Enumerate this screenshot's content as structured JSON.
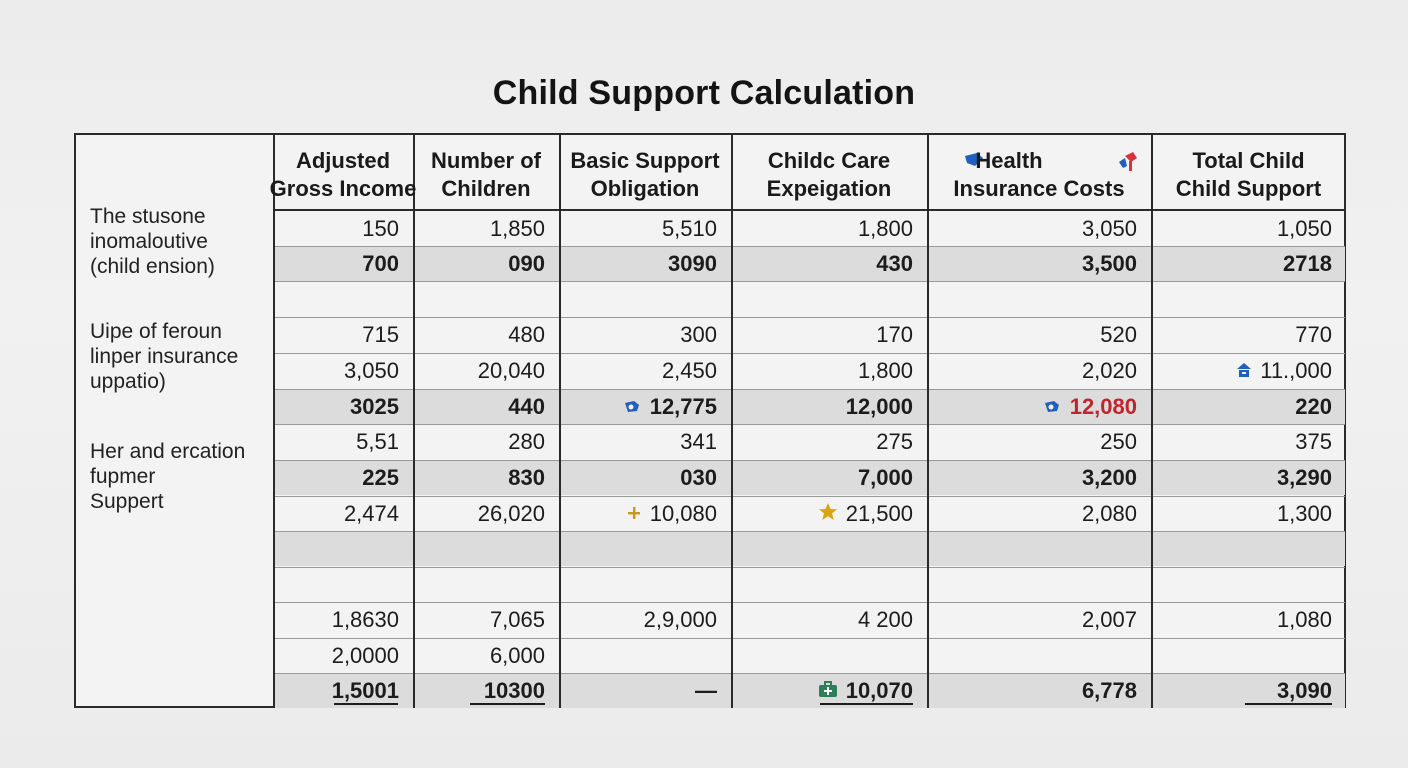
{
  "title": "Child Support Calculation",
  "colors": {
    "accent_red": "#c0242c",
    "icon_blue": "#1f5fbf",
    "icon_gold": "#d4a017",
    "icon_green": "#2e7d5b"
  },
  "headers": [
    {
      "line1": "Adjusted",
      "line2": "Gross Income"
    },
    {
      "line1": "Number of",
      "line2": "Children"
    },
    {
      "line1": "Basic Support",
      "line2": "Obligation"
    },
    {
      "line1": "Childc Care",
      "line2": "Expeigation"
    },
    {
      "line1": "Health",
      "line2": "Insurance Costs",
      "icon": "flag-icon",
      "icon2": "pin-icon"
    },
    {
      "line1": "Total Child",
      "line2": "Child Support"
    }
  ],
  "row_labels": [
    {
      "lines": [
        "The stusone",
        "inomaloutive",
        "(child ension)"
      ]
    },
    {
      "lines": [
        "Uipe of feroun",
        "linper insurance",
        "uppatio)"
      ]
    },
    {
      "lines": [
        "Her and ercation",
        "fupmer",
        " Suppert"
      ]
    }
  ],
  "rows": [
    {
      "cells": [
        "150",
        "1,850",
        "5,510",
        "1,800",
        "3,050",
        "1,050"
      ]
    },
    {
      "cells": [
        "700",
        "090",
        "3090",
        "430",
        "3,500",
        "2718"
      ]
    },
    {
      "cells": [
        "",
        "",
        "",
        "",
        "",
        ""
      ]
    },
    {
      "cells": [
        "715",
        "480",
        "300",
        "170",
        "520",
        "770"
      ]
    },
    {
      "cells": [
        "3,050",
        "20,040",
        "2,450",
        "1,800",
        "2,020",
        "11.,000"
      ]
    },
    {
      "cells": [
        "3025",
        "440",
        "12,775",
        "12,000",
        "12,080",
        "220"
      ]
    },
    {
      "cells": [
        "5,51",
        "280",
        "341",
        "275",
        "250",
        "375"
      ]
    },
    {
      "cells": [
        "225",
        "830",
        "030",
        "7,000",
        "3,200",
        "3,290"
      ]
    },
    {
      "cells": [
        "2,474",
        "26,020",
        "10,080",
        "21,500",
        "2,080",
        "1,300"
      ]
    },
    {
      "cells": [
        "",
        "",
        "",
        "",
        "",
        ""
      ]
    },
    {
      "cells": [
        "",
        "",
        "",
        "",
        "",
        ""
      ]
    },
    {
      "cells": [
        "1,8630",
        "7,065",
        "2,9,000",
        "4 200",
        "2,007",
        "1,080"
      ]
    },
    {
      "cells": [
        "2,0000",
        "6,000",
        "",
        "",
        "",
        ""
      ]
    },
    {
      "cells": [
        "1,5001",
        "10300",
        "—",
        "10,070",
        "6,778",
        "3,090"
      ]
    }
  ]
}
